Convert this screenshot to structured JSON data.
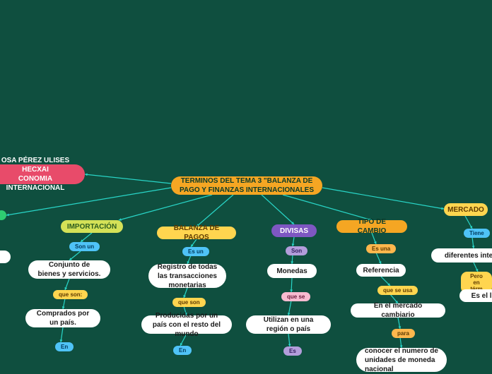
{
  "colors": {
    "bg": "#0f4f3f",
    "root_bg": "#f5a623",
    "root_text": "#0a3a2a",
    "author_bg": "#e84b6a",
    "author_text": "#ffffff",
    "import_bg": "#d4e157",
    "import_text": "#2e5d1f",
    "white_bg": "#ffffff",
    "white_text": "#1a1a1a",
    "balanza_bg": "#ffd54f",
    "balanza_text": "#5d3a00",
    "divisas_bg": "#7e57c2",
    "divisas_text": "#ffffff",
    "tipo_bg": "#f5a623",
    "tipo_text": "#0a3a2a",
    "mercado_bg": "#ffd54f",
    "mercado_text": "#5d3a00",
    "conn_blue_bg": "#4fc3f7",
    "conn_blue_text": "#003a5d",
    "conn_yellow_bg": "#ffd54f",
    "conn_yellow_text": "#5d3a00",
    "conn_pink_bg": "#f8bbd0",
    "conn_pink_text": "#6a1b3a",
    "conn_purple_bg": "#b39ddb",
    "conn_purple_text": "#311b5e",
    "conn_orange_bg": "#ffb74d",
    "conn_orange_text": "#5d3a00",
    "line": "#29d6c8",
    "circle": "#2ecc71"
  },
  "root": "TERMINOS DEL TEMA 3 \"BALANZA DE PAGO Y FINANZAS INTERNACIONALES",
  "author": "OSA PÉREZ ULISES HECXAI\nCONOMIA INTERNACIONAL",
  "branches": {
    "importacion": {
      "title": "IMPORTACIÓN",
      "c1": "Son un",
      "n1": "Conjunto de bienes y servicios.",
      "c2": "que son:",
      "n2": "Comprados por un país.",
      "c3": "En"
    },
    "balanza": {
      "title": "BALANZA DE PAGOS",
      "c1": "Es un",
      "n1": "Registro de todas las transacciones monetarias",
      "c2": "que son",
      "n2": "Producidas por un país con el resto del mundo",
      "c3": "En"
    },
    "divisas": {
      "title": "DIVISAS",
      "c1": "Son",
      "n1": "Monedas",
      "c2": "que se",
      "n2": "Utilizan en una región o país",
      "c3": "Es"
    },
    "tipo": {
      "title": "TIPO DE CAMBIO",
      "c1": "Es una",
      "n1": "Referencia",
      "c2": "que se usa",
      "n2": "En el mercado cambiario",
      "c3": "para",
      "n3": "conocer el numero de unidades de moneda nacional"
    },
    "mercado": {
      "title": "MERCADO",
      "c1": "Tiene",
      "n1": "diferentes interpr",
      "c2": "Pero en térm",
      "n2": "Es el luga"
    }
  }
}
